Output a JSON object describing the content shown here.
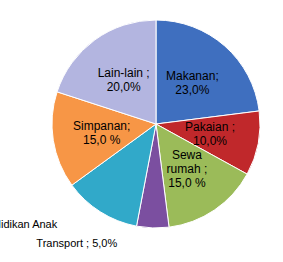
{
  "chart_data": {
    "type": "pie",
    "categories": [
      "Makanan;\n23,0%",
      "Pakaian ;\n10,0%",
      "Sewa\nrumah ;\n15,0 %",
      "Transport ; 5,0%",
      "Pendidikan Anak",
      "Simpanan;\n15,0 %",
      "Lain-lain ;\n20,0%"
    ],
    "values": [
      23,
      10,
      15,
      5,
      12,
      15,
      20
    ],
    "colors": [
      "#3f6fbf",
      "#c0282b",
      "#9bbb59",
      "#7b4fa0",
      "#31a9c9",
      "#f79646",
      "#b3b5e0"
    ],
    "data_labels": true
  }
}
